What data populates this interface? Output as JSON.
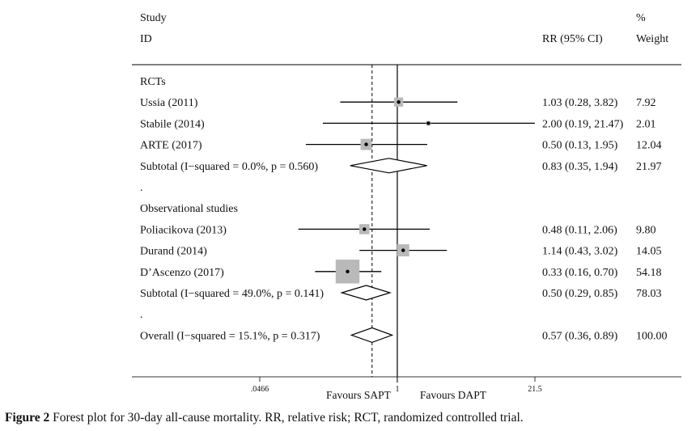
{
  "header": {
    "study_line1": "Study",
    "study_line2": "ID",
    "rr_header": "RR (95% CI)",
    "weight_line1": "%",
    "weight_line2": "Weight"
  },
  "chart_data": {
    "type": "forest",
    "x_scale": "log",
    "xlim": [
      0.0466,
      21.5
    ],
    "tick_labels": [
      ".0466",
      "1",
      "21.5"
    ],
    "tick_values": [
      0.0466,
      1,
      21.5
    ],
    "reference_line": 1,
    "overall_line": 0.57,
    "favours_left": "Favours SAPT",
    "favours_right": "Favours DAPT",
    "rows": [
      {
        "kind": "group",
        "label": "RCTs"
      },
      {
        "kind": "study",
        "label": "Ussia (2011)",
        "rr": 1.03,
        "lo": 0.28,
        "hi": 3.82,
        "ci_text": "1.03 (0.28, 3.82)",
        "weight": 7.92,
        "weight_text": "7.92"
      },
      {
        "kind": "study",
        "label": "Stabile (2014)",
        "rr": 2.0,
        "lo": 0.19,
        "hi": 21.47,
        "ci_text": "2.00 (0.19, 21.47)",
        "weight": 2.01,
        "weight_text": "2.01"
      },
      {
        "kind": "study",
        "label": "ARTE (2017)",
        "rr": 0.5,
        "lo": 0.13,
        "hi": 1.95,
        "ci_text": "0.50 (0.13, 1.95)",
        "weight": 12.04,
        "weight_text": "12.04"
      },
      {
        "kind": "subtotal",
        "label": "Subtotal  (I−squared = 0.0%, p = 0.560)",
        "rr": 0.83,
        "lo": 0.35,
        "hi": 1.94,
        "ci_text": "0.83 (0.35, 1.94)",
        "weight_text": "21.97"
      },
      {
        "kind": "dot",
        "label": "."
      },
      {
        "kind": "group",
        "label": "Observational studies"
      },
      {
        "kind": "study",
        "label": "Poliacikova (2013)",
        "rr": 0.48,
        "lo": 0.11,
        "hi": 2.06,
        "ci_text": "0.48 (0.11, 2.06)",
        "weight": 9.8,
        "weight_text": "9.80"
      },
      {
        "kind": "study",
        "label": "Durand (2014)",
        "rr": 1.14,
        "lo": 0.43,
        "hi": 3.02,
        "ci_text": "1.14 (0.43, 3.02)",
        "weight": 14.05,
        "weight_text": "14.05"
      },
      {
        "kind": "study",
        "label": "D’Ascenzo (2017)",
        "rr": 0.33,
        "lo": 0.16,
        "hi": 0.7,
        "ci_text": "0.33 (0.16, 0.70)",
        "weight": 54.18,
        "weight_text": "54.18"
      },
      {
        "kind": "subtotal",
        "label": "Subtotal  (I−squared = 49.0%, p = 0.141)",
        "rr": 0.5,
        "lo": 0.29,
        "hi": 0.85,
        "ci_text": "0.50 (0.29, 0.85)",
        "weight_text": "78.03"
      },
      {
        "kind": "dot",
        "label": "."
      },
      {
        "kind": "subtotal",
        "label": "Overall  (I−squared = 15.1%, p = 0.317)",
        "rr": 0.57,
        "lo": 0.36,
        "hi": 0.89,
        "ci_text": "0.57 (0.36, 0.89)",
        "weight_text": "100.00"
      }
    ]
  },
  "caption": {
    "label": "Figure 2",
    "text": " Forest plot for 30-day all-cause mortality. RR, relative risk; RCT, randomized controlled trial."
  },
  "colors": {
    "box": "#b9b9b9",
    "line": "#000000",
    "axis": "#333333"
  }
}
